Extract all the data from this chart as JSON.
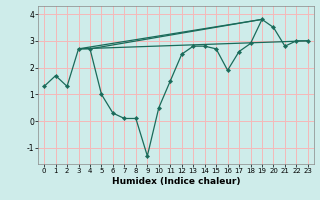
{
  "xlabel": "Humidex (Indice chaleur)",
  "line_color": "#1a6b5a",
  "bg_color": "#ceecea",
  "grid_color": "#f5b8b8",
  "ylim": [
    -1.6,
    4.3
  ],
  "xlim": [
    -0.5,
    23.5
  ],
  "yticks": [
    -1,
    0,
    1,
    2,
    3,
    4
  ],
  "xticks": [
    0,
    1,
    2,
    3,
    4,
    5,
    6,
    7,
    8,
    9,
    10,
    11,
    12,
    13,
    14,
    15,
    16,
    17,
    18,
    19,
    20,
    21,
    22,
    23
  ],
  "main_x": [
    0,
    1,
    2,
    3,
    4,
    5,
    6,
    7,
    8,
    9,
    10,
    11,
    12,
    13,
    14,
    15,
    16,
    17,
    18,
    19,
    20,
    21,
    22,
    23
  ],
  "main_y": [
    1.3,
    1.7,
    1.3,
    2.7,
    2.7,
    1.0,
    0.3,
    0.1,
    0.1,
    -1.3,
    0.5,
    1.5,
    2.5,
    2.8,
    2.8,
    2.7,
    1.9,
    2.6,
    2.9,
    3.8,
    3.5,
    2.8,
    3.0,
    3.0
  ],
  "trend1_x": [
    3,
    19
  ],
  "trend1_y": [
    2.7,
    3.8
  ],
  "trend2_x": [
    3,
    23
  ],
  "trend2_y": [
    2.7,
    3.0
  ],
  "trend3_x": [
    4,
    19
  ],
  "trend3_y": [
    2.7,
    3.8
  ]
}
